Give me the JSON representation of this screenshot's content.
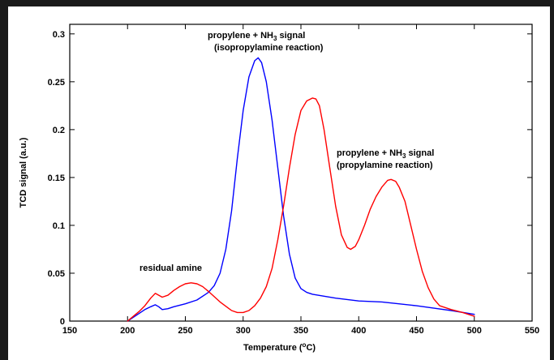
{
  "chart_data": {
    "type": "line",
    "xlabel": "Temperature (°C)",
    "ylabel": "TCD signal (a.u.)",
    "xlim": [
      150,
      550
    ],
    "ylim": [
      0,
      0.31
    ],
    "xticks": [
      150,
      200,
      250,
      300,
      350,
      400,
      450,
      500,
      550
    ],
    "yticks": [
      0,
      0.05,
      0.1,
      0.15,
      0.2,
      0.25,
      0.3
    ],
    "ytick_labels": [
      "0",
      "0.05",
      "0.1",
      "0.15",
      "0.2",
      "0.25",
      "0.3"
    ],
    "grid": false,
    "series": [
      {
        "color": "#0000ff",
        "x": [
          200,
          205,
          210,
          215,
          220,
          224,
          227,
          230,
          235,
          240,
          250,
          260,
          270,
          275,
          280,
          285,
          290,
          295,
          300,
          305,
          310,
          313,
          316,
          320,
          325,
          330,
          335,
          340,
          345,
          350,
          355,
          360,
          370,
          380,
          400,
          420,
          450,
          480,
          500
        ],
        "y": [
          0.0,
          0.004,
          0.008,
          0.012,
          0.015,
          0.017,
          0.015,
          0.012,
          0.013,
          0.015,
          0.018,
          0.022,
          0.03,
          0.037,
          0.05,
          0.075,
          0.115,
          0.17,
          0.22,
          0.255,
          0.272,
          0.275,
          0.27,
          0.25,
          0.21,
          0.16,
          0.11,
          0.07,
          0.045,
          0.034,
          0.03,
          0.028,
          0.026,
          0.024,
          0.021,
          0.02,
          0.016,
          0.011,
          0.007
        ]
      },
      {
        "color": "#ff0000",
        "x": [
          200,
          205,
          210,
          215,
          220,
          224,
          227,
          230,
          235,
          240,
          245,
          250,
          255,
          260,
          265,
          270,
          280,
          290,
          295,
          300,
          305,
          310,
          315,
          320,
          325,
          330,
          335,
          340,
          345,
          350,
          355,
          360,
          363,
          366,
          370,
          375,
          380,
          385,
          390,
          393,
          397,
          400,
          405,
          410,
          415,
          420,
          425,
          428,
          432,
          435,
          440,
          445,
          450,
          455,
          460,
          465,
          470,
          480,
          490,
          500
        ],
        "y": [
          0.0,
          0.005,
          0.01,
          0.016,
          0.024,
          0.029,
          0.027,
          0.025,
          0.027,
          0.032,
          0.036,
          0.039,
          0.04,
          0.039,
          0.036,
          0.031,
          0.02,
          0.011,
          0.009,
          0.009,
          0.011,
          0.016,
          0.024,
          0.036,
          0.055,
          0.085,
          0.12,
          0.16,
          0.195,
          0.22,
          0.23,
          0.233,
          0.232,
          0.225,
          0.2,
          0.16,
          0.12,
          0.09,
          0.077,
          0.075,
          0.078,
          0.085,
          0.1,
          0.117,
          0.13,
          0.14,
          0.147,
          0.148,
          0.146,
          0.14,
          0.125,
          0.1,
          0.075,
          0.052,
          0.035,
          0.023,
          0.016,
          0.012,
          0.009,
          0.005
        ]
      }
    ],
    "annotations": [
      {
        "id": "residual",
        "lines": [
          "residual amine"
        ]
      },
      {
        "id": "isopropyl",
        "lines": [
          "propylene + NH3 signal",
          "(isopropylamine reaction)"
        ]
      },
      {
        "id": "propyl",
        "lines": [
          "propylene + NH3 signal",
          "(propylamine reaction)"
        ]
      }
    ]
  }
}
